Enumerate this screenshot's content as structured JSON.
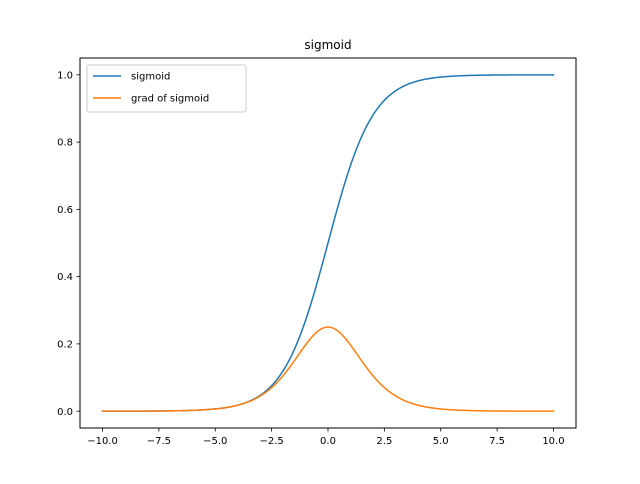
{
  "chart_data": {
    "type": "line",
    "title": "sigmoid",
    "xlabel": "",
    "ylabel": "",
    "xlim": [
      -11.0,
      11.0
    ],
    "ylim": [
      -0.05,
      1.05
    ],
    "xticks": [
      -10.0,
      -7.5,
      -5.0,
      -2.5,
      0.0,
      2.5,
      5.0,
      7.5,
      10.0
    ],
    "xtick_labels": [
      "−10.0",
      "−7.5",
      "−5.0",
      "−2.5",
      "0.0",
      "2.5",
      "5.0",
      "7.5",
      "10.0"
    ],
    "yticks": [
      0.0,
      0.2,
      0.4,
      0.6,
      0.8,
      1.0
    ],
    "ytick_labels": [
      "0.0",
      "0.2",
      "0.4",
      "0.6",
      "0.8",
      "1.0"
    ],
    "grid": false,
    "legend": {
      "placement": "top-left"
    },
    "x": [
      -10,
      -9,
      -8,
      -7,
      -6,
      -5,
      -4.5,
      -4,
      -3.5,
      -3,
      -2.5,
      -2,
      -1.75,
      -1.5,
      -1.25,
      -1,
      -0.75,
      -0.5,
      -0.25,
      0,
      0.25,
      0.5,
      0.75,
      1,
      1.25,
      1.5,
      1.75,
      2,
      2.5,
      3,
      3.5,
      4,
      4.5,
      5,
      6,
      7,
      8,
      9,
      10
    ],
    "series": [
      {
        "name": "sigmoid",
        "color": "#1f77b4",
        "values": [
          0.0,
          0.0001,
          0.0003,
          0.0009,
          0.0025,
          0.0067,
          0.011,
          0.018,
          0.0293,
          0.0474,
          0.0759,
          0.1192,
          0.148,
          0.1824,
          0.2227,
          0.2689,
          0.3208,
          0.3775,
          0.4378,
          0.5,
          0.5622,
          0.6225,
          0.6792,
          0.7311,
          0.7773,
          0.8176,
          0.852,
          0.8808,
          0.9241,
          0.9526,
          0.9707,
          0.982,
          0.989,
          0.9933,
          0.9975,
          0.9991,
          0.9997,
          0.9999,
          1.0
        ]
      },
      {
        "name": "grad of sigmoid",
        "color": "#ff7f0e",
        "values": [
          0.0,
          0.0001,
          0.0003,
          0.0009,
          0.0025,
          0.0066,
          0.0109,
          0.0177,
          0.0285,
          0.0452,
          0.0701,
          0.105,
          0.1261,
          0.1491,
          0.1731,
          0.1966,
          0.2179,
          0.235,
          0.2461,
          0.25,
          0.2461,
          0.235,
          0.2179,
          0.1966,
          0.1731,
          0.1491,
          0.1261,
          0.105,
          0.0701,
          0.0452,
          0.0285,
          0.0177,
          0.0109,
          0.0066,
          0.0025,
          0.0009,
          0.0003,
          0.0001,
          0.0
        ]
      }
    ]
  }
}
